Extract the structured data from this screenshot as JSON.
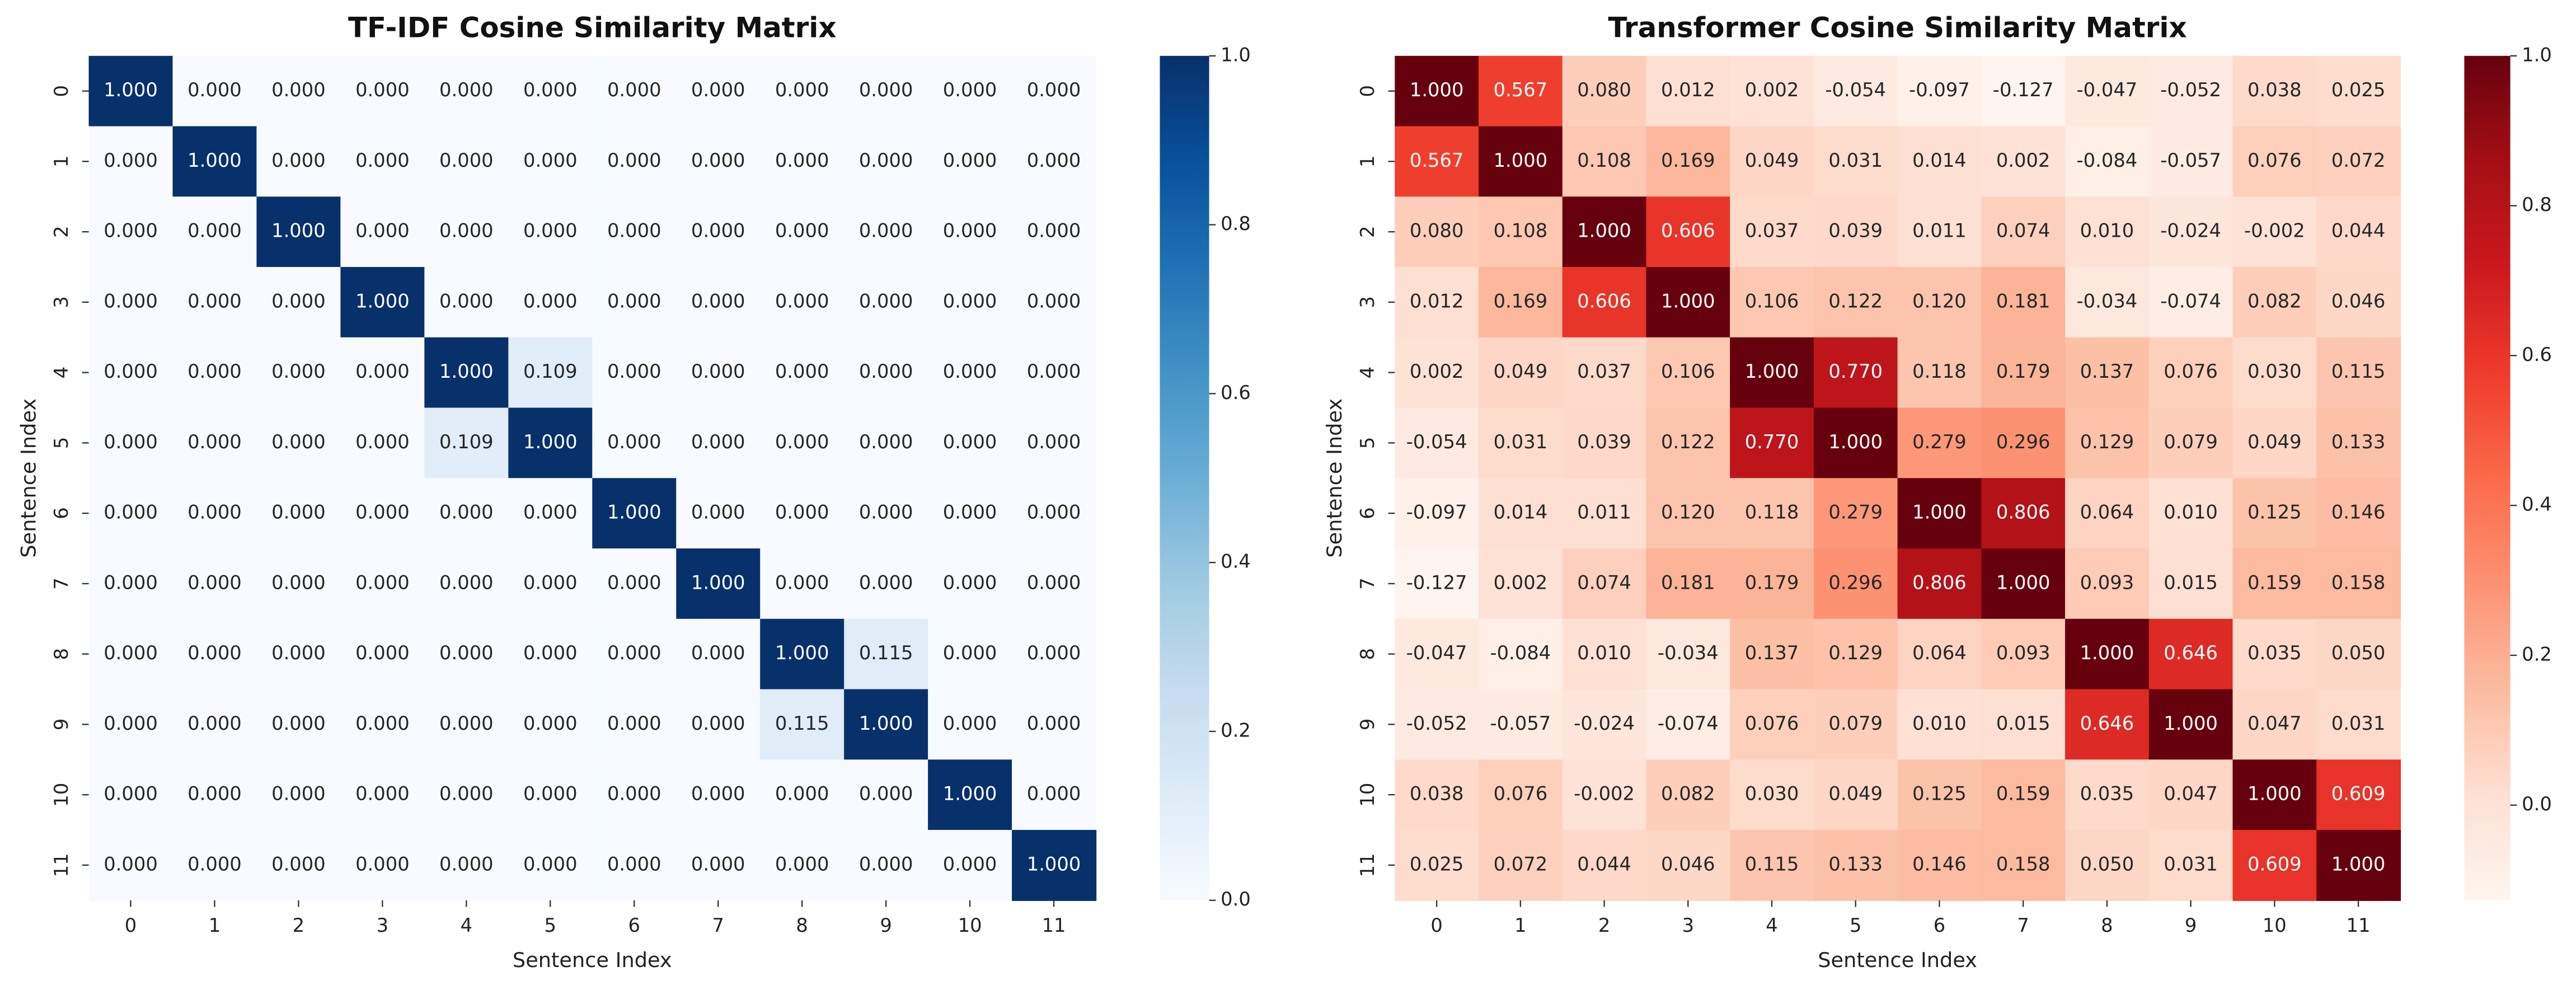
{
  "chart_data": [
    {
      "type": "heatmap",
      "title": "TF-IDF Cosine Similarity Matrix",
      "xlabel": "Sentence Index",
      "ylabel": "Sentence Index",
      "x": [
        "0",
        "1",
        "2",
        "3",
        "4",
        "5",
        "6",
        "7",
        "8",
        "9",
        "10",
        "11"
      ],
      "y": [
        "0",
        "1",
        "2",
        "3",
        "4",
        "5",
        "6",
        "7",
        "8",
        "9",
        "10",
        "11"
      ],
      "values": [
        [
          1,
          0,
          0,
          0,
          0,
          0,
          0,
          0,
          0,
          0,
          0,
          0
        ],
        [
          0,
          1,
          0,
          0,
          0,
          0,
          0,
          0,
          0,
          0,
          0,
          0
        ],
        [
          0,
          0,
          1,
          0,
          0,
          0,
          0,
          0,
          0,
          0,
          0,
          0
        ],
        [
          0,
          0,
          0,
          1,
          0,
          0,
          0,
          0,
          0,
          0,
          0,
          0
        ],
        [
          0,
          0,
          0,
          0,
          1,
          0.109,
          0,
          0,
          0,
          0,
          0,
          0
        ],
        [
          0,
          0,
          0,
          0,
          0.109,
          1,
          0,
          0,
          0,
          0,
          0,
          0
        ],
        [
          0,
          0,
          0,
          0,
          0,
          0,
          1,
          0,
          0,
          0,
          0,
          0
        ],
        [
          0,
          0,
          0,
          0,
          0,
          0,
          0,
          1,
          0,
          0,
          0,
          0
        ],
        [
          0,
          0,
          0,
          0,
          0,
          0,
          0,
          0,
          1,
          0.115,
          0,
          0
        ],
        [
          0,
          0,
          0,
          0,
          0,
          0,
          0,
          0,
          0.115,
          1,
          0,
          0
        ],
        [
          0,
          0,
          0,
          0,
          0,
          0,
          0,
          0,
          0,
          0,
          1,
          0
        ],
        [
          0,
          0,
          0,
          0,
          0,
          0,
          0,
          0,
          0,
          0,
          0,
          1
        ]
      ],
      "value_labels": [
        [
          "1.000",
          "0.000",
          "0.000",
          "0.000",
          "0.000",
          "0.000",
          "0.000",
          "0.000",
          "0.000",
          "0.000",
          "0.000",
          "0.000"
        ],
        [
          "0.000",
          "1.000",
          "0.000",
          "0.000",
          "0.000",
          "0.000",
          "0.000",
          "0.000",
          "0.000",
          "0.000",
          "0.000",
          "0.000"
        ],
        [
          "0.000",
          "0.000",
          "1.000",
          "0.000",
          "0.000",
          "0.000",
          "0.000",
          "0.000",
          "0.000",
          "0.000",
          "0.000",
          "0.000"
        ],
        [
          "0.000",
          "0.000",
          "0.000",
          "1.000",
          "0.000",
          "0.000",
          "0.000",
          "0.000",
          "0.000",
          "0.000",
          "0.000",
          "0.000"
        ],
        [
          "0.000",
          "0.000",
          "0.000",
          "0.000",
          "1.000",
          "0.109",
          "0.000",
          "0.000",
          "0.000",
          "0.000",
          "0.000",
          "0.000"
        ],
        [
          "0.000",
          "0.000",
          "0.000",
          "0.000",
          "0.109",
          "1.000",
          "0.000",
          "0.000",
          "0.000",
          "0.000",
          "0.000",
          "0.000"
        ],
        [
          "0.000",
          "0.000",
          "0.000",
          "0.000",
          "0.000",
          "0.000",
          "1.000",
          "0.000",
          "0.000",
          "0.000",
          "0.000",
          "0.000"
        ],
        [
          "0.000",
          "0.000",
          "0.000",
          "0.000",
          "0.000",
          "0.000",
          "0.000",
          "1.000",
          "0.000",
          "0.000",
          "0.000",
          "0.000"
        ],
        [
          "0.000",
          "0.000",
          "0.000",
          "0.000",
          "0.000",
          "0.000",
          "0.000",
          "0.000",
          "1.000",
          "0.115",
          "0.000",
          "0.000"
        ],
        [
          "0.000",
          "0.000",
          "0.000",
          "0.000",
          "0.000",
          "0.000",
          "0.000",
          "0.000",
          "0.115",
          "1.000",
          "0.000",
          "0.000"
        ],
        [
          "0.000",
          "0.000",
          "0.000",
          "0.000",
          "0.000",
          "0.000",
          "0.000",
          "0.000",
          "0.000",
          "0.000",
          "1.000",
          "0.000"
        ],
        [
          "0.000",
          "0.000",
          "0.000",
          "0.000",
          "0.000",
          "0.000",
          "0.000",
          "0.000",
          "0.000",
          "0.000",
          "0.000",
          "1.000"
        ]
      ],
      "clim": [
        0,
        1
      ],
      "cticks": [
        {
          "value": 0,
          "label": "0.0"
        },
        0.2,
        0.4,
        0.6,
        0.8,
        {
          "value": 1,
          "label": "1.0"
        }
      ],
      "colors": [
        "#f7fbff",
        "#deebf7",
        "#c6dbef",
        "#9ecae1",
        "#6baed6",
        "#4292c6",
        "#2171b5",
        "#08519c",
        "#08306b"
      ]
    },
    {
      "type": "heatmap",
      "title": "Transformer Cosine Similarity Matrix",
      "xlabel": "Sentence Index",
      "ylabel": "Sentence Index",
      "x": [
        "0",
        "1",
        "2",
        "3",
        "4",
        "5",
        "6",
        "7",
        "8",
        "9",
        "10",
        "11"
      ],
      "y": [
        "0",
        "1",
        "2",
        "3",
        "4",
        "5",
        "6",
        "7",
        "8",
        "9",
        "10",
        "11"
      ],
      "values": [
        [
          1,
          0.567,
          0.08,
          0.012,
          0.002,
          -0.054,
          -0.097,
          -0.127,
          -0.047,
          -0.052,
          0.038,
          0.025
        ],
        [
          0.567,
          1,
          0.108,
          0.169,
          0.049,
          0.031,
          0.014,
          0.002,
          -0.084,
          -0.057,
          0.076,
          0.072
        ],
        [
          0.08,
          0.108,
          1,
          0.606,
          0.037,
          0.039,
          0.011,
          0.074,
          0.01,
          -0.024,
          -0.002,
          0.044
        ],
        [
          0.012,
          0.169,
          0.606,
          1,
          0.106,
          0.122,
          0.12,
          0.181,
          -0.034,
          -0.074,
          0.082,
          0.046
        ],
        [
          0.002,
          0.049,
          0.037,
          0.106,
          1,
          0.77,
          0.118,
          0.179,
          0.137,
          0.076,
          0.03,
          0.115
        ],
        [
          -0.054,
          0.031,
          0.039,
          0.122,
          0.77,
          1,
          0.279,
          0.296,
          0.129,
          0.079,
          0.049,
          0.133
        ],
        [
          -0.097,
          0.014,
          0.011,
          0.12,
          0.118,
          0.279,
          1,
          0.806,
          0.064,
          0.01,
          0.125,
          0.146
        ],
        [
          -0.127,
          0.002,
          0.074,
          0.181,
          0.179,
          0.296,
          0.806,
          1,
          0.093,
          0.015,
          0.159,
          0.158
        ],
        [
          -0.047,
          -0.084,
          0.01,
          -0.034,
          0.137,
          0.129,
          0.064,
          0.093,
          1,
          0.646,
          0.035,
          0.05
        ],
        [
          -0.052,
          -0.057,
          -0.024,
          -0.074,
          0.076,
          0.079,
          0.01,
          0.015,
          0.646,
          1,
          0.047,
          0.031
        ],
        [
          0.038,
          0.076,
          -0.002,
          0.082,
          0.03,
          0.049,
          0.125,
          0.159,
          0.035,
          0.047,
          1,
          0.609
        ],
        [
          0.025,
          0.072,
          0.044,
          0.046,
          0.115,
          0.133,
          0.146,
          0.158,
          0.05,
          0.031,
          0.609,
          1
        ]
      ],
      "value_labels": [
        [
          "1.000",
          "0.567",
          "0.080",
          "0.012",
          "0.002",
          "-0.054",
          "-0.097",
          "-0.127",
          "-0.047",
          "-0.052",
          "0.038",
          "0.025"
        ],
        [
          "0.567",
          "1.000",
          "0.108",
          "0.169",
          "0.049",
          "0.031",
          "0.014",
          "0.002",
          "-0.084",
          "-0.057",
          "0.076",
          "0.072"
        ],
        [
          "0.080",
          "0.108",
          "1.000",
          "0.606",
          "0.037",
          "0.039",
          "0.011",
          "0.074",
          "0.010",
          "-0.024",
          "-0.002",
          "0.044"
        ],
        [
          "0.012",
          "0.169",
          "0.606",
          "1.000",
          "0.106",
          "0.122",
          "0.120",
          "0.181",
          "-0.034",
          "-0.074",
          "0.082",
          "0.046"
        ],
        [
          "0.002",
          "0.049",
          "0.037",
          "0.106",
          "1.000",
          "0.770",
          "0.118",
          "0.179",
          "0.137",
          "0.076",
          "0.030",
          "0.115"
        ],
        [
          "-0.054",
          "0.031",
          "0.039",
          "0.122",
          "0.770",
          "1.000",
          "0.279",
          "0.296",
          "0.129",
          "0.079",
          "0.049",
          "0.133"
        ],
        [
          "-0.097",
          "0.014",
          "0.011",
          "0.120",
          "0.118",
          "0.279",
          "1.000",
          "0.806",
          "0.064",
          "0.010",
          "0.125",
          "0.146"
        ],
        [
          "-0.127",
          "0.002",
          "0.074",
          "0.181",
          "0.179",
          "0.296",
          "0.806",
          "1.000",
          "0.093",
          "0.015",
          "0.159",
          "0.158"
        ],
        [
          "-0.047",
          "-0.084",
          "0.010",
          "-0.034",
          "0.137",
          "0.129",
          "0.064",
          "0.093",
          "1.000",
          "0.646",
          "0.035",
          "0.050"
        ],
        [
          "-0.052",
          "-0.057",
          "-0.024",
          "-0.074",
          "0.076",
          "0.079",
          "0.010",
          "0.015",
          "0.646",
          "1.000",
          "0.047",
          "0.031"
        ],
        [
          "0.038",
          "0.076",
          "-0.002",
          "0.082",
          "0.030",
          "0.049",
          "0.125",
          "0.159",
          "0.035",
          "0.047",
          "1.000",
          "0.609"
        ],
        [
          "0.025",
          "0.072",
          "0.044",
          "0.046",
          "0.115",
          "0.133",
          "0.146",
          "0.158",
          "0.050",
          "0.031",
          "0.609",
          "1.000"
        ]
      ],
      "clim": [
        -0.127,
        1
      ],
      "cticks": [
        {
          "value": 0,
          "label": "0.0"
        },
        0.2,
        0.4,
        0.6,
        0.8,
        {
          "value": 1,
          "label": "1.0"
        }
      ],
      "colors": [
        "#fff5f0",
        "#fee0d2",
        "#fcbba1",
        "#fc9272",
        "#fb6a4a",
        "#ef3b2c",
        "#cb181d",
        "#a50f15",
        "#67000d"
      ]
    }
  ]
}
